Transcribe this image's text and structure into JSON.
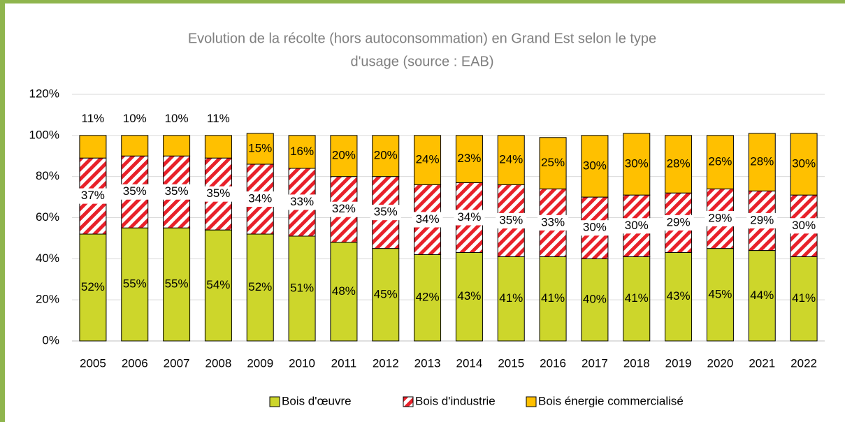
{
  "chart_data": {
    "type": "stacked-bar",
    "title": [
      "Evolution de la récolte (hors autoconsommation) en Grand Est selon le type",
      "d'usage (source : EAB)"
    ],
    "categories": [
      "2005",
      "2006",
      "2007",
      "2008",
      "2009",
      "2010",
      "2011",
      "2012",
      "2013",
      "2014",
      "2015",
      "2016",
      "2017",
      "2018",
      "2019",
      "2020",
      "2021",
      "2022"
    ],
    "series": [
      {
        "name": "Bois d'œuvre",
        "color": "#cdd62b",
        "values": [
          52,
          55,
          55,
          54,
          52,
          51,
          48,
          45,
          42,
          43,
          41,
          41,
          40,
          41,
          43,
          45,
          44,
          41
        ],
        "value_labels": [
          "52%",
          "55%",
          "55%",
          "54%",
          "52%",
          "51%",
          "48%",
          "45%",
          "42%",
          "43%",
          "41%",
          "41%",
          "40%",
          "41%",
          "43%",
          "45%",
          "44%",
          "41%"
        ]
      },
      {
        "name": "Bois d'industrie",
        "color": "#e8212a",
        "values": [
          37,
          35,
          35,
          35,
          34,
          33,
          32,
          35,
          34,
          34,
          35,
          33,
          30,
          30,
          29,
          29,
          29,
          30
        ],
        "value_labels": [
          "37%",
          "35%",
          "35%",
          "35%",
          "34%",
          "33%",
          "32%",
          "35%",
          "34%",
          "34%",
          "35%",
          "33%",
          "30%",
          "30%",
          "29%",
          "29%",
          "29%",
          "30%"
        ]
      },
      {
        "name": "Bois énergie commercialisé",
        "color": "#ffc000",
        "values": [
          11,
          10,
          10,
          11,
          15,
          16,
          20,
          20,
          24,
          23,
          24,
          25,
          30,
          30,
          28,
          26,
          28,
          30
        ],
        "value_labels": [
          "11%",
          "10%",
          "10%",
          "11%",
          "15%",
          "16%",
          "20%",
          "20%",
          "24%",
          "23%",
          "24%",
          "25%",
          "30%",
          "30%",
          "28%",
          "26%",
          "28%",
          "30%"
        ]
      }
    ],
    "ylim": [
      0,
      120
    ],
    "yticks": [
      {
        "value": 0,
        "label": "0%"
      },
      {
        "value": 20,
        "label": "20%"
      },
      {
        "value": 40,
        "label": "40%"
      },
      {
        "value": 60,
        "label": "60%"
      },
      {
        "value": 80,
        "label": "80%"
      },
      {
        "value": 100,
        "label": "100%"
      },
      {
        "value": 120,
        "label": "120%"
      }
    ],
    "grid": true
  }
}
